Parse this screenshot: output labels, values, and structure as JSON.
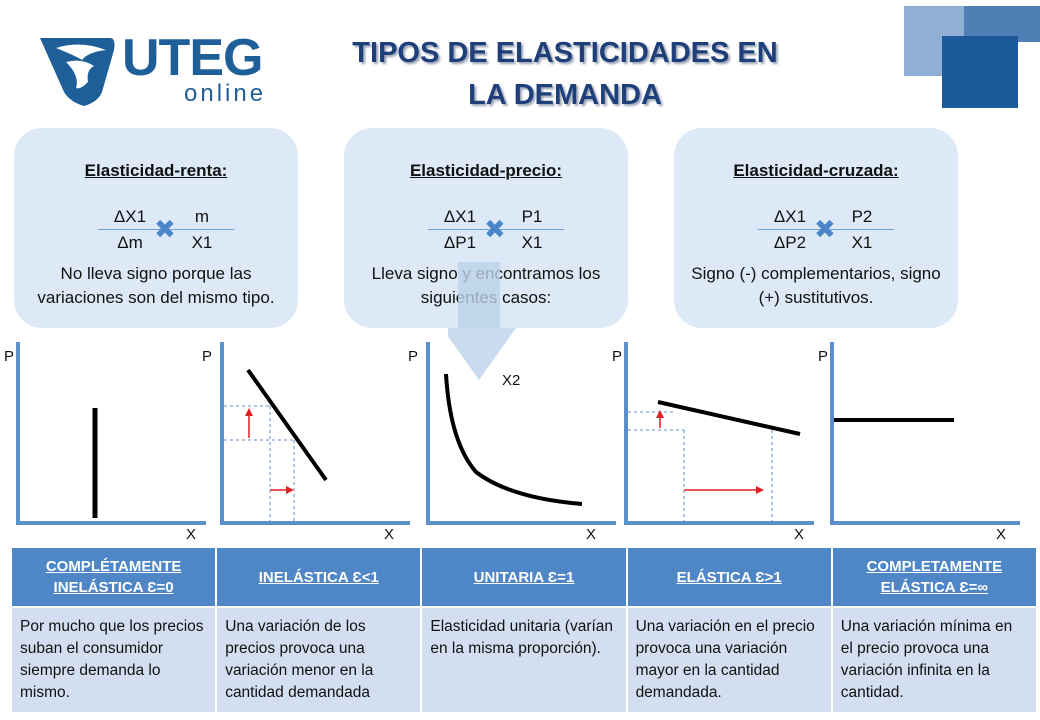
{
  "logo": {
    "word": "UTEG",
    "sub": "online"
  },
  "title": {
    "line1": "TIPOS DE ELASTICIDADES EN",
    "line2": "LA DEMANDA"
  },
  "colors": {
    "title": "#1f3f7a",
    "accent": "#4e86c6",
    "card_bg": "#dde9f6",
    "row_bg": "#d3dff0"
  },
  "cards": [
    {
      "title": "Elasticidad-renta:",
      "f1_num": "ΔX1",
      "f1_den": "Δm",
      "f2_num": "m",
      "f2_den": "X1",
      "desc": "No lleva signo porque las variaciones son del mismo tipo."
    },
    {
      "title": "Elasticidad-precio:",
      "f1_num": "ΔX1",
      "f1_den": "ΔP1",
      "f2_num": "P1",
      "f2_den": "X1",
      "desc": "Lleva signo y encontramos los siguientes casos:"
    },
    {
      "title": "Elasticidad-cruzada:",
      "f1_num": "ΔX1",
      "f1_den": "ΔP2",
      "f2_num": "P2",
      "f2_den": "X1",
      "desc": "Signo (-) complementarios, signo (+) sustitutivos."
    }
  ],
  "graphs": {
    "axis_p": "P",
    "axis_x": "X",
    "curve_label": "X2"
  },
  "table": {
    "headers": [
      "COMPLÉTAMENTE INELÁSTICA Ɛ=0",
      "INELÁSTICA Ɛ<1",
      "UNITARIA Ɛ=1",
      "ELÁSTICA Ɛ>1",
      "COMPLETAMENTE ELÁSTICA Ɛ=∞"
    ],
    "cells": [
      "Por mucho que los precios suban el consumidor siempre demanda lo mismo.",
      "Una variación de los precios provoca una variación menor en la cantidad demandada",
      "Elasticidad unitaria (varían en la misma proporción).",
      "Una variación en el precio provoca una variación mayor en la cantidad demandada.",
      "Una variación mínima en el precio provoca una variación infinita en la cantidad."
    ]
  }
}
